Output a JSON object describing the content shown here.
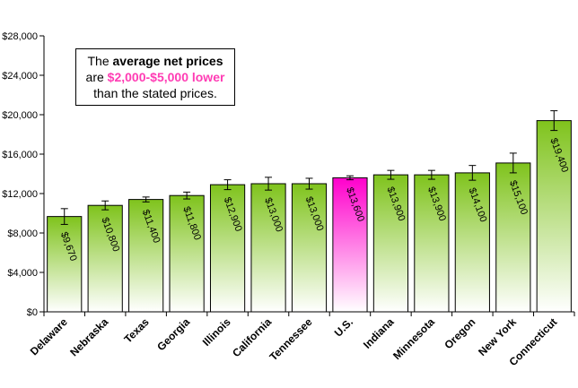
{
  "chart_data": {
    "type": "bar",
    "title": "",
    "xlabel": "",
    "ylabel": "",
    "ylim": [
      0,
      28000
    ],
    "y_ticks": [
      "$0",
      "$4,000",
      "$8,000",
      "$12,000",
      "$16,000",
      "$20,000",
      "$24,000",
      "$28,000"
    ],
    "y_tick_values": [
      0,
      4000,
      8000,
      12000,
      16000,
      20000,
      24000,
      28000
    ],
    "categories": [
      "Delaware",
      "Nebraska",
      "Texas",
      "Georgia",
      "Illinois",
      "California",
      "Tennessee",
      "U.S.",
      "Indiana",
      "Minnesota",
      "Oregon",
      "New York",
      "Connecticut"
    ],
    "values": [
      9670,
      10800,
      11400,
      11800,
      12900,
      13000,
      13000,
      13600,
      13900,
      13900,
      14100,
      15100,
      19400
    ],
    "data_labels": [
      "$9,670",
      "$10,800",
      "$11,400",
      "$11,800",
      "$12,900",
      "$13,000",
      "$13,000",
      "$13,600",
      "$13,900",
      "$13,900",
      "$14,100",
      "$15,100",
      "$19,400"
    ],
    "error_bars": [
      800,
      450,
      250,
      350,
      500,
      650,
      550,
      200,
      450,
      450,
      750,
      1000,
      1000
    ],
    "highlight_index": 7,
    "colors": {
      "bar_top": "#7fc31c",
      "bar_bottom": "#ffffff",
      "highlight_top": "#ff00cc",
      "highlight_bottom": "#ffffff",
      "grid": "#000000"
    },
    "grid": false,
    "legend": "none"
  },
  "annotation": {
    "line1_pre": "The ",
    "line1_bold": "average net prices",
    "line2_pre": "are ",
    "line2_highlight": "$2,000-$5,000 lower",
    "line3": "than the stated prices."
  }
}
